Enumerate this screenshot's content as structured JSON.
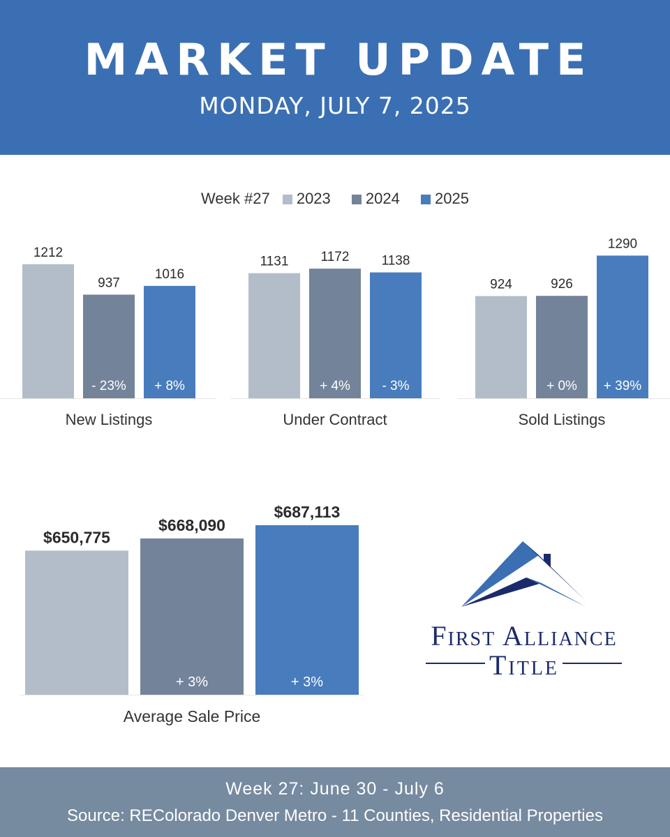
{
  "header": {
    "title": "MARKET UPDATE",
    "date": "MONDAY, JULY 7, 2025"
  },
  "legend": {
    "label": "Week #27",
    "years": [
      "2023",
      "2024",
      "2025"
    ]
  },
  "colors": {
    "header_bg": "#3b6fb3",
    "footer_bg": "#768aa0",
    "y2023": "#b2bdc9",
    "y2024": "#738399",
    "y2025": "#487cbd",
    "logo_navy": "#1b2a6b",
    "logo_blue": "#3b6fb3"
  },
  "chart_data": [
    {
      "type": "bar",
      "title": "New Listings",
      "categories": [
        "2023",
        "2024",
        "2025"
      ],
      "values": [
        1212,
        937,
        1016
      ],
      "value_labels": [
        "1212",
        "937",
        "1016"
      ],
      "change_labels": [
        "",
        "- 23%",
        "+ 8%"
      ]
    },
    {
      "type": "bar",
      "title": "Under Contract",
      "categories": [
        "2023",
        "2024",
        "2025"
      ],
      "values": [
        1131,
        1172,
        1138
      ],
      "value_labels": [
        "1131",
        "1172",
        "1138"
      ],
      "change_labels": [
        "",
        "+ 4%",
        "- 3%"
      ]
    },
    {
      "type": "bar",
      "title": "Sold Listings",
      "categories": [
        "2023",
        "2024",
        "2025"
      ],
      "values": [
        924,
        926,
        1290
      ],
      "value_labels": [
        "924",
        "926",
        "1290"
      ],
      "change_labels": [
        "",
        "+ 0%",
        "+ 39%"
      ]
    },
    {
      "type": "bar",
      "title": "Average Sale Price",
      "categories": [
        "2023",
        "2024",
        "2025"
      ],
      "values": [
        650775,
        668090,
        687113
      ],
      "value_labels": [
        "$650,775",
        "$668,090",
        "$687,113"
      ],
      "change_labels": [
        "",
        "+ 3%",
        "+ 3%"
      ]
    }
  ],
  "logo": {
    "line1": "First Alliance",
    "line2": "Title",
    "icon": "house-roof-icon"
  },
  "footer": {
    "week": "Week 27: June 30 - July 6",
    "source": "Source: REColorado Denver Metro - 11 Counties, Residential Properties"
  }
}
